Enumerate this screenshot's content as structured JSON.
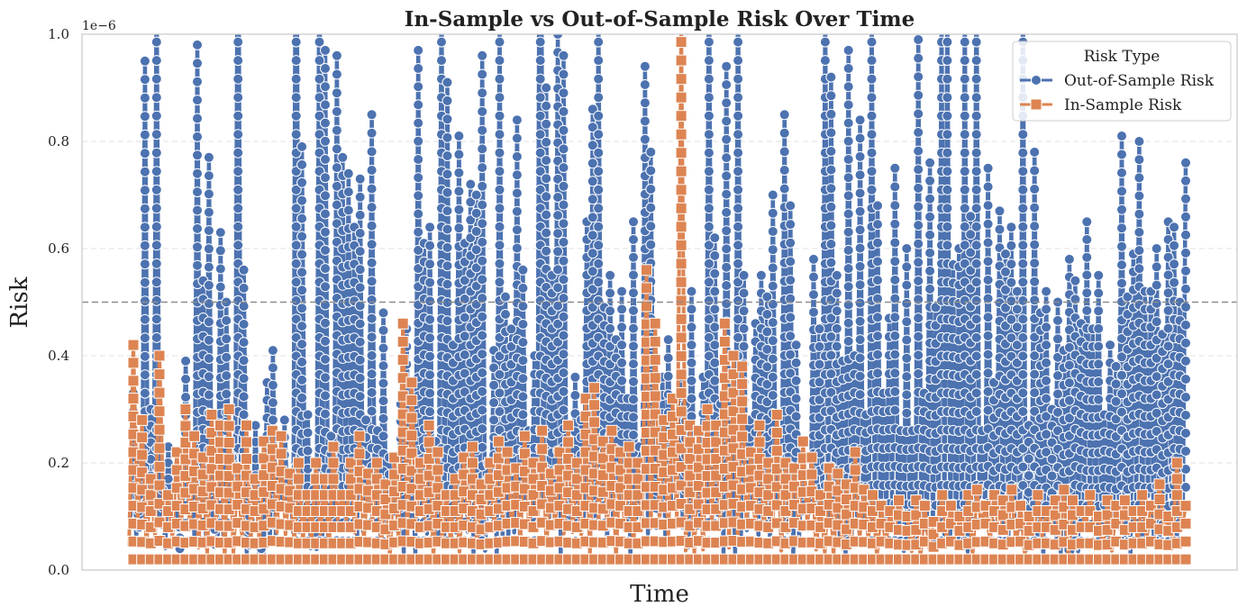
{
  "chart_data": {
    "type": "line",
    "title": "In-Sample vs Out-of-Sample Risk Over Time",
    "xlabel": "Time",
    "ylabel": "Risk",
    "y_offset_label": "1e−6",
    "ylim": [
      0.0,
      1.0
    ],
    "y_ticks": [
      "0.0",
      "0.2",
      "0.4",
      "0.6",
      "0.8",
      "1.0"
    ],
    "grid": true,
    "reference_line_y": 0.5,
    "legend": {
      "title": "Risk Type",
      "placement": "top-right",
      "entries": [
        "Out-of-Sample Risk",
        "In-Sample Risk"
      ]
    },
    "series": [
      {
        "name": "Out-of-Sample Risk",
        "color": "#4c72b0",
        "marker": "circle",
        "values": [
          0.33,
          0.2,
          0.95,
          0.3,
          1.12,
          0.15,
          0.23,
          0.12,
          0.08,
          0.39,
          0.22,
          0.98,
          0.54,
          0.77,
          0.16,
          0.63,
          0.5,
          0.21,
          1.4,
          0.56,
          0.1,
          0.27,
          0.05,
          0.35,
          0.41,
          0.19,
          0.28,
          0.15,
          1.5,
          0.79,
          0.29,
          0.15,
          1.2,
          0.97,
          0.25,
          0.96,
          0.77,
          0.74,
          0.64,
          0.73,
          0.28,
          0.85,
          0.26,
          0.48,
          0.21,
          0.14,
          0.31,
          0.45,
          0.18,
          0.97,
          0.61,
          0.64,
          0.24,
          1.1,
          0.91,
          0.42,
          0.81,
          0.61,
          0.72,
          0.7,
          0.96,
          0.2,
          0.41,
          1.02,
          0.51,
          0.45,
          0.84,
          0.56,
          0.26,
          0.4,
          1.8,
          0.9,
          0.55,
          1.0,
          0.96,
          0.14,
          0.36,
          0.28,
          0.65,
          0.86,
          1.04,
          0.49,
          0.55,
          0.43,
          0.52,
          0.32,
          0.65,
          0.23,
          0.94,
          0.78,
          0.21,
          0.36,
          0.43,
          0.12,
          0.36,
          0.31,
          0.52,
          0.18,
          0.36,
          1.15,
          0.62,
          0.31,
          0.94,
          0.26,
          1.12,
          0.55,
          0.28,
          0.46,
          0.55,
          0.51,
          0.7,
          0.22,
          0.85,
          0.68,
          0.42,
          0.2,
          0.14,
          0.58,
          0.45,
          1.05,
          0.92,
          0.55,
          0.39,
          0.97,
          0.4,
          0.84,
          0.29,
          1.04,
          0.68,
          0.33,
          0.47,
          0.75,
          0.26,
          0.6,
          0.26,
          0.99,
          0.33,
          0.76,
          0.49,
          1.04,
          1.06,
          0.57,
          0.6,
          1.06,
          0.66,
          1.13,
          0.26,
          0.75,
          0.35,
          0.67,
          0.59,
          0.64,
          0.52,
          1.07,
          0.27,
          0.78,
          0.48,
          0.52,
          0.3,
          0.5,
          0.41,
          0.58,
          0.54,
          0.46,
          0.65,
          0.45,
          0.55,
          0.29,
          0.42,
          0.38,
          0.81,
          0.51,
          0.59,
          0.8,
          0.52,
          0.52,
          0.6,
          0.44,
          0.65,
          0.64,
          0.5,
          0.76
        ],
        "x_positions_note": ""
      },
      {
        "name": "In-Sample Risk",
        "color": "#dd8452",
        "marker": "square",
        "values": [
          0.42,
          0.28,
          0.17,
          0.4,
          0.14,
          0.22,
          0.3,
          0.25,
          0.21,
          0.29,
          0.27,
          0.3,
          0.19,
          0.27,
          0.17,
          0.24,
          0.26,
          0.25,
          0.18,
          0.2,
          0.14,
          0.2,
          0.17,
          0.23,
          0.14,
          0.2,
          0.25,
          0.18,
          0.2,
          0.16,
          0.21,
          0.46,
          0.35,
          0.2,
          0.27,
          0.22,
          0.14,
          0.17,
          0.21,
          0.23,
          0.16,
          0.2,
          0.24,
          0.22,
          0.19,
          0.25,
          0.2,
          0.26,
          0.18,
          0.22,
          0.27,
          0.2,
          0.32,
          0.34,
          0.24,
          0.26,
          0.22,
          0.23,
          0.2,
          0.56,
          0.46,
          0.28,
          0.32,
          1.02,
          0.27,
          0.26,
          0.3,
          0.27,
          0.46,
          0.4,
          0.38,
          0.22,
          0.27,
          0.2,
          0.29,
          0.2,
          0.19,
          0.24,
          0.21,
          0.14,
          0.19,
          0.18,
          0.16,
          0.22,
          0.15,
          0.14,
          0.12,
          0.11,
          0.13,
          0.1,
          0.13,
          0.12,
          0.09,
          0.14,
          0.12,
          0.1,
          0.14,
          0.15,
          0.12,
          0.14,
          0.13,
          0.15,
          0.12,
          0.1,
          0.14,
          0.11,
          0.13,
          0.15,
          0.13,
          0.11,
          0.14,
          0.1,
          0.13,
          0.12,
          0.13,
          0.11,
          0.14,
          0.12,
          0.16,
          0.1,
          0.2,
          0.12
        ]
      }
    ]
  }
}
